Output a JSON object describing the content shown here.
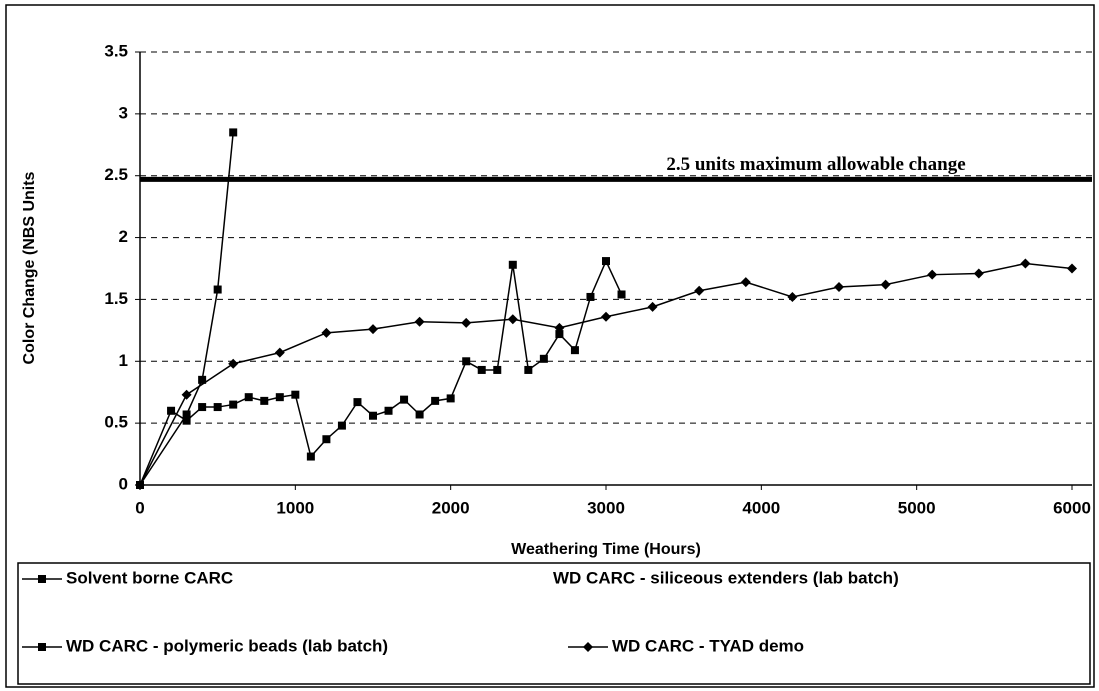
{
  "chart_data": {
    "type": "line",
    "xlabel": "Weathering Time (Hours)",
    "ylabel": "Color Change (NBS Units",
    "xlim": [
      0,
      6000
    ],
    "xticks": [
      0,
      1000,
      2000,
      3000,
      4000,
      5000,
      6000
    ],
    "ylim": [
      0,
      3.5
    ],
    "yticks": [
      0,
      0.5,
      1,
      1.5,
      2,
      2.5,
      3,
      3.5
    ],
    "grid": true,
    "threshold": {
      "value": 2.47,
      "label": "2.5 units maximum allowable change"
    },
    "series": [
      {
        "name": "Solvent borne CARC",
        "color": "#000000",
        "marker": "square",
        "x": [
          0,
          300,
          400,
          500,
          600
        ],
        "values": [
          0,
          0.57,
          0.85,
          1.58,
          2.85
        ]
      },
      {
        "name": "WD CARC - siliceous extenders (lab batch)",
        "color": "#ffffff",
        "marker": "none",
        "x": [],
        "values": []
      },
      {
        "name": "WD CARC - polymeric beads (lab batch)",
        "color": "#000000",
        "marker": "square",
        "x": [
          0,
          200,
          300,
          400,
          500,
          600,
          700,
          800,
          900,
          1000,
          1100,
          1200,
          1300,
          1400,
          1500,
          1600,
          1700,
          1800,
          1900,
          2000,
          2100,
          2200,
          2300,
          2400,
          2500,
          2600,
          2700,
          2800,
          2900,
          3000,
          3100
        ],
        "values": [
          0,
          0.6,
          0.52,
          0.63,
          0.63,
          0.65,
          0.71,
          0.68,
          0.71,
          0.73,
          0.23,
          0.37,
          0.48,
          0.67,
          0.56,
          0.6,
          0.69,
          0.57,
          0.68,
          0.7,
          1.0,
          0.93,
          0.93,
          1.78,
          0.93,
          1.02,
          1.22,
          1.09,
          1.52,
          1.81,
          1.54
        ]
      },
      {
        "name": "WD CARC - TYAD demo",
        "color": "#000000",
        "marker": "diamond",
        "x": [
          0,
          300,
          600,
          900,
          1200,
          1500,
          1800,
          2100,
          2400,
          2700,
          3000,
          3300,
          3600,
          3900,
          4200,
          4500,
          4800,
          5100,
          5400,
          5700,
          6000
        ],
        "values": [
          0,
          0.73,
          0.98,
          1.07,
          1.23,
          1.26,
          1.32,
          1.31,
          1.34,
          1.27,
          1.36,
          1.44,
          1.57,
          1.64,
          1.52,
          1.6,
          1.62,
          1.7,
          1.71,
          1.79,
          1.75
        ]
      }
    ]
  }
}
